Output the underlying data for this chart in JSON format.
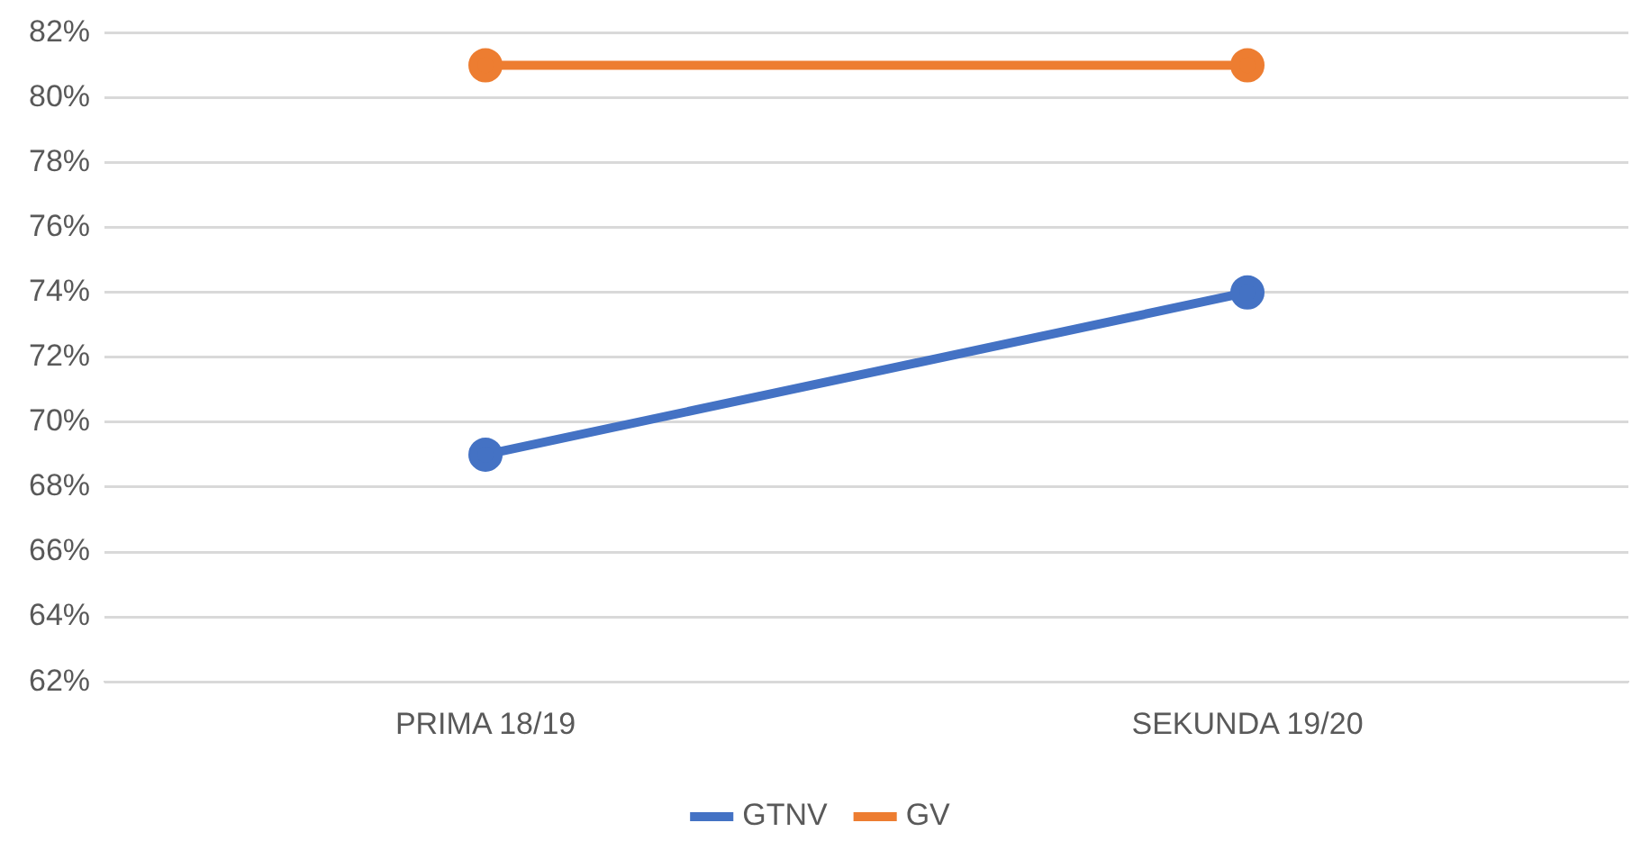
{
  "chart_data": {
    "type": "line",
    "categories": [
      "PRIMA 18/19",
      "SEKUNDA 19/20"
    ],
    "series": [
      {
        "name": "GTNV",
        "color": "#4472c4",
        "values": [
          69,
          74
        ]
      },
      {
        "name": "GV",
        "color": "#ed7d31",
        "values": [
          81,
          81
        ]
      }
    ],
    "ylim": [
      62,
      82
    ],
    "yticks": [
      {
        "value": 62,
        "label": "62%"
      },
      {
        "value": 64,
        "label": "64%"
      },
      {
        "value": 66,
        "label": "66%"
      },
      {
        "value": 68,
        "label": "68%"
      },
      {
        "value": 70,
        "label": "70%"
      },
      {
        "value": 72,
        "label": "72%"
      },
      {
        "value": 74,
        "label": "74%"
      },
      {
        "value": 76,
        "label": "76%"
      },
      {
        "value": 78,
        "label": "78%"
      },
      {
        "value": 80,
        "label": "80%"
      },
      {
        "value": 82,
        "label": "82%"
      }
    ],
    "grid": "y",
    "legend": "bottom",
    "marker": "circle",
    "line_style": "solid"
  }
}
